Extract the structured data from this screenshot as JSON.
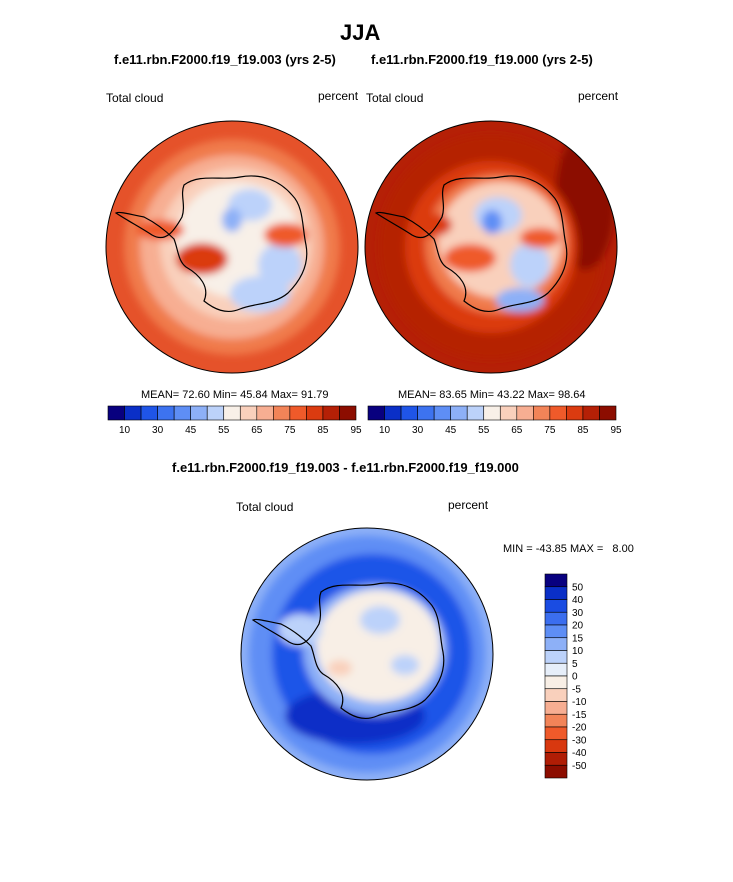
{
  "page": {
    "season": "JJA",
    "title_left": "f.e11.rbn.F2000.f19_f19.003 (yrs 2-5)",
    "title_right": "f.e11.rbn.F2000.f19_f19.000 (yrs 2-5)",
    "title_diff": "f.e11.rbn.F2000.f19_f19.003 - f.e11.rbn.F2000.f19_f19.000"
  },
  "panels": [
    {
      "variable": "Total cloud",
      "units": "percent",
      "mean_label": "MEAN=",
      "mean": "72.60",
      "min_label": "Min=",
      "min": "45.84",
      "max_label": "Max=",
      "max": "91.79"
    },
    {
      "variable": "Total cloud",
      "units": "percent",
      "mean_label": "MEAN=",
      "mean": "83.65",
      "min_label": "Min=",
      "min": "43.22",
      "max_label": "Max=",
      "max": "98.64"
    }
  ],
  "diff_panel": {
    "variable": "Total cloud",
    "units": "percent",
    "minmax_text": "MIN = -43.85 MAX =   8.00"
  },
  "colorbar_main": {
    "colors": [
      "#08007f",
      "#0a2fc7",
      "#1f55e8",
      "#3d73f0",
      "#5e8ef5",
      "#8db0f7",
      "#bcd2fa",
      "#f8f0e8",
      "#f9d0bc",
      "#f7ae92",
      "#f28458",
      "#ef5a2a",
      "#db3b10",
      "#b52006",
      "#8c0d00"
    ],
    "tick_labels": [
      "10",
      "30",
      "45",
      "55",
      "65",
      "75",
      "85",
      "95"
    ]
  },
  "colorbar_diff": {
    "colors": [
      "#08007f",
      "#0a2fc7",
      "#1a4ce2",
      "#3b6eef",
      "#5e8ef5",
      "#8db0f7",
      "#bcd2fa",
      "#e6eef9",
      "#f8efe6",
      "#f9d0bc",
      "#f7ae92",
      "#f28458",
      "#ef5a2a",
      "#d8380f",
      "#b01d05",
      "#8c0d00"
    ],
    "tick_labels": [
      "50",
      "40",
      "30",
      "20",
      "15",
      "10",
      "5",
      "0",
      "-5",
      "-10",
      "-15",
      "-20",
      "-30",
      "-40",
      "-50"
    ]
  },
  "chart_data": [
    {
      "type": "heatmap",
      "title": "f.e11.rbn.F2000.f19_f19.003 (yrs 2-5)",
      "variable": "Total cloud",
      "units": "percent",
      "projection": "south polar stereographic",
      "mean": 72.6,
      "min": 45.84,
      "max": 91.79,
      "levels": [
        10,
        30,
        45,
        55,
        65,
        75,
        85,
        95
      ]
    },
    {
      "type": "heatmap",
      "title": "f.e11.rbn.F2000.f19_f19.000 (yrs 2-5)",
      "variable": "Total cloud",
      "units": "percent",
      "projection": "south polar stereographic",
      "mean": 83.65,
      "min": 43.22,
      "max": 98.64,
      "levels": [
        10,
        30,
        45,
        55,
        65,
        75,
        85,
        95
      ]
    },
    {
      "type": "heatmap",
      "title": "f.e11.rbn.F2000.f19_f19.003 - f.e11.rbn.F2000.f19_f19.000",
      "variable": "Total cloud",
      "units": "percent",
      "projection": "south polar stereographic",
      "min": -43.85,
      "max": 8.0,
      "levels": [
        -50,
        -40,
        -30,
        -20,
        -15,
        -10,
        -5,
        0,
        5,
        10,
        15,
        20,
        30,
        40,
        50
      ]
    }
  ]
}
